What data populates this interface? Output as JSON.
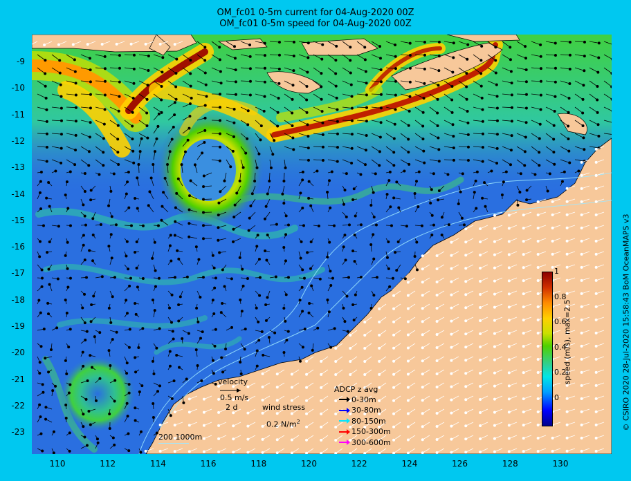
{
  "title_line1": "OM_fc01 0-5m current for 04-Aug-2020 00Z",
  "title_line2": "OM_fc01 0-5m speed for 04-Aug-2020 00Z",
  "map": {
    "lon_range": [
      109,
      132
    ],
    "lat_range": [
      -24,
      -8.2
    ],
    "lat_ticks": [
      "-9",
      "-10",
      "-11",
      "-12",
      "-13",
      "-14",
      "-15",
      "-16",
      "-17",
      "-18",
      "-19",
      "-20",
      "-21",
      "-22",
      "-23"
    ],
    "lon_ticks": [
      "110",
      "112",
      "114",
      "116",
      "118",
      "120",
      "122",
      "124",
      "126",
      "128",
      "130"
    ],
    "ocean_color": "#2a6fe0",
    "land_color": "#f7c89a",
    "background_color": "#00c8f0"
  },
  "colorbar": {
    "ticks": [
      "1",
      "0.8",
      "0.6",
      "0.4",
      "0.2",
      "0"
    ],
    "label": "speed (m/s), max=2.5"
  },
  "velocity_legend": {
    "title": "velocity",
    "speed": "0.5 m/s",
    "duration": "2 d"
  },
  "wind_legend": {
    "title": "wind stress",
    "value": "0.2 N/m",
    "superscript": "2"
  },
  "bathymetry_legend": {
    "label": "200  1000m"
  },
  "adcp_legend": {
    "title": "ADCP z avg",
    "items": [
      {
        "label": "0-30m",
        "color": "#000000"
      },
      {
        "label": "30-80m",
        "color": "#0000ff"
      },
      {
        "label": "80-150m",
        "color": "#00e5ff"
      },
      {
        "label": "150-300m",
        "color": "#ff0000"
      },
      {
        "label": "300-600m",
        "color": "#ff00ff"
      }
    ]
  },
  "credit": "© CSIRO 2020   28-Jul-2020 15:58:43 BoM OceanMAPS v3"
}
